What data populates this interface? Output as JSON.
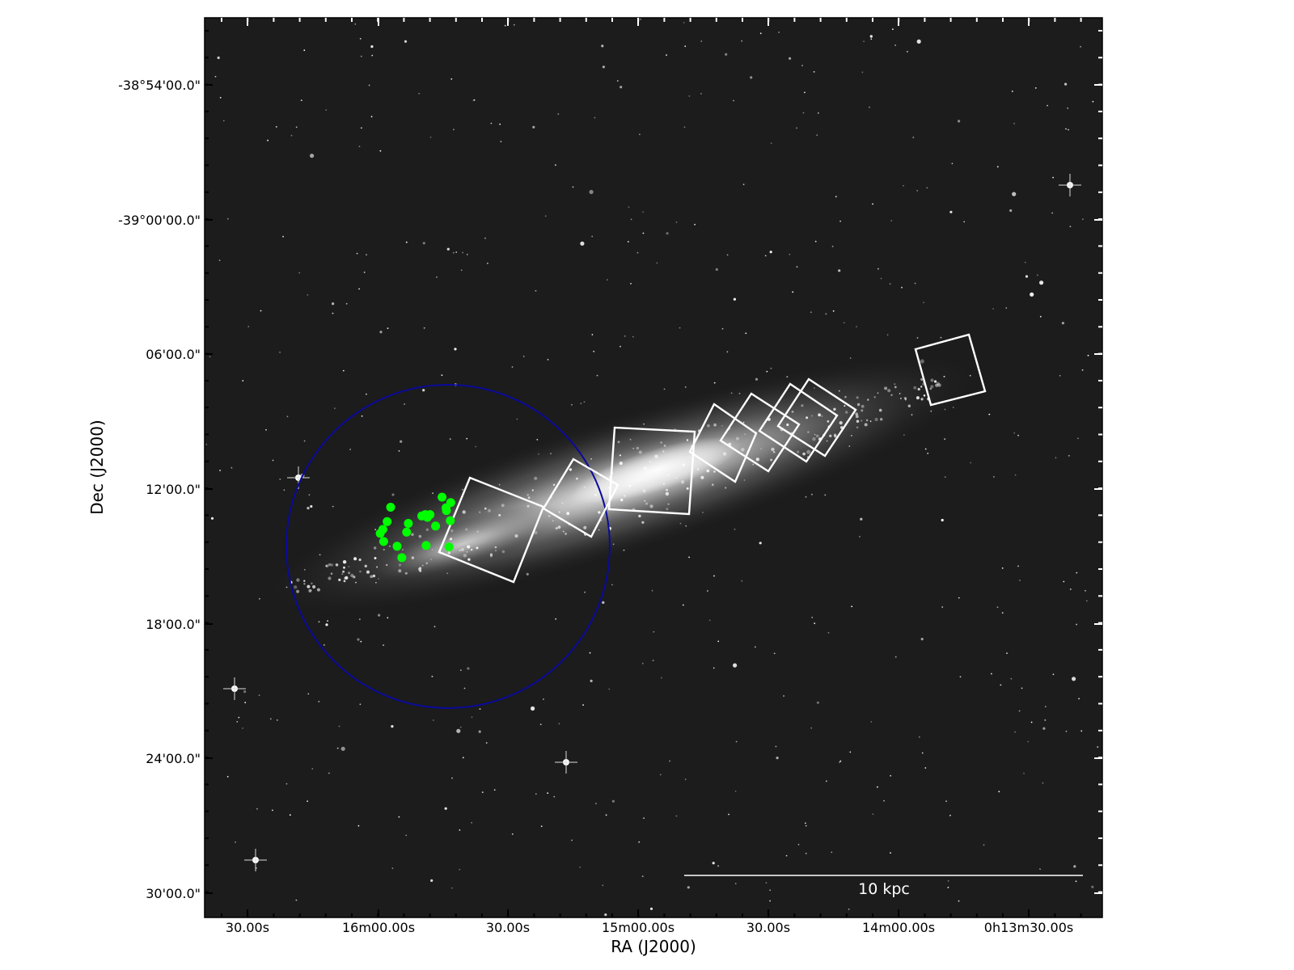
{
  "chart_data": {
    "type": "scatter",
    "title": "",
    "xlabel": "RA (J2000)",
    "ylabel": "Dec (J2000)",
    "x_ticks": [
      "30.00s",
      "16m00.00s",
      "30.00s",
      "15m00.00s",
      "30.00s",
      "14m00.00s",
      "0h13m30.00s"
    ],
    "y_ticks": [
      "-38°54'00.0\"",
      "-39°00'00.0\"",
      "06'00.0\"",
      "12'00.0\"",
      "18'00.0\"",
      "24'00.0\"",
      "30'00.0\""
    ],
    "scale_bar_label": "10 kpc",
    "grid": false,
    "colors": {
      "sky": "#1c1c1c",
      "galaxy": "#ffffff",
      "markers": "#00ff00",
      "circle": "#0a0a9a",
      "footprints": "#ffffff",
      "axes": "#000000"
    },
    "points_dec_arcmin": [
      {
        "ra_s": 57.2,
        "dec": -39.2135
      },
      {
        "ra_s": 58.0,
        "dec": -39.2242
      },
      {
        "ra_s": 59.0,
        "dec": -39.23
      },
      {
        "ra_s": 59.6,
        "dec": -39.233
      },
      {
        "ra_s": 58.8,
        "dec": -39.239
      },
      {
        "ra_s": 55.7,
        "dec": -39.2425
      },
      {
        "ra_s": 54.6,
        "dec": -39.251
      },
      {
        "ra_s": 53.5,
        "dec": -39.232
      },
      {
        "ra_s": 53.1,
        "dec": -39.2255
      },
      {
        "ra_s": 50.0,
        "dec": -39.22
      },
      {
        "ra_s": 49.2,
        "dec": -39.219
      },
      {
        "ra_s": 48.7,
        "dec": -39.221
      },
      {
        "ra_s": 48.1,
        "dec": -39.219
      },
      {
        "ra_s": 46.8,
        "dec": -39.2275
      },
      {
        "ra_s": 49.0,
        "dec": -39.242
      },
      {
        "ra_s": 45.3,
        "dec": -39.206
      },
      {
        "ra_s": 44.4,
        "dec": -39.214
      },
      {
        "ra_s": 44.3,
        "dec": -39.216
      },
      {
        "ra_s": 43.3,
        "dec": -39.21
      },
      {
        "ra_s": 43.4,
        "dec": -39.2235
      },
      {
        "ra_s": 43.7,
        "dec": -39.243
      }
    ]
  }
}
